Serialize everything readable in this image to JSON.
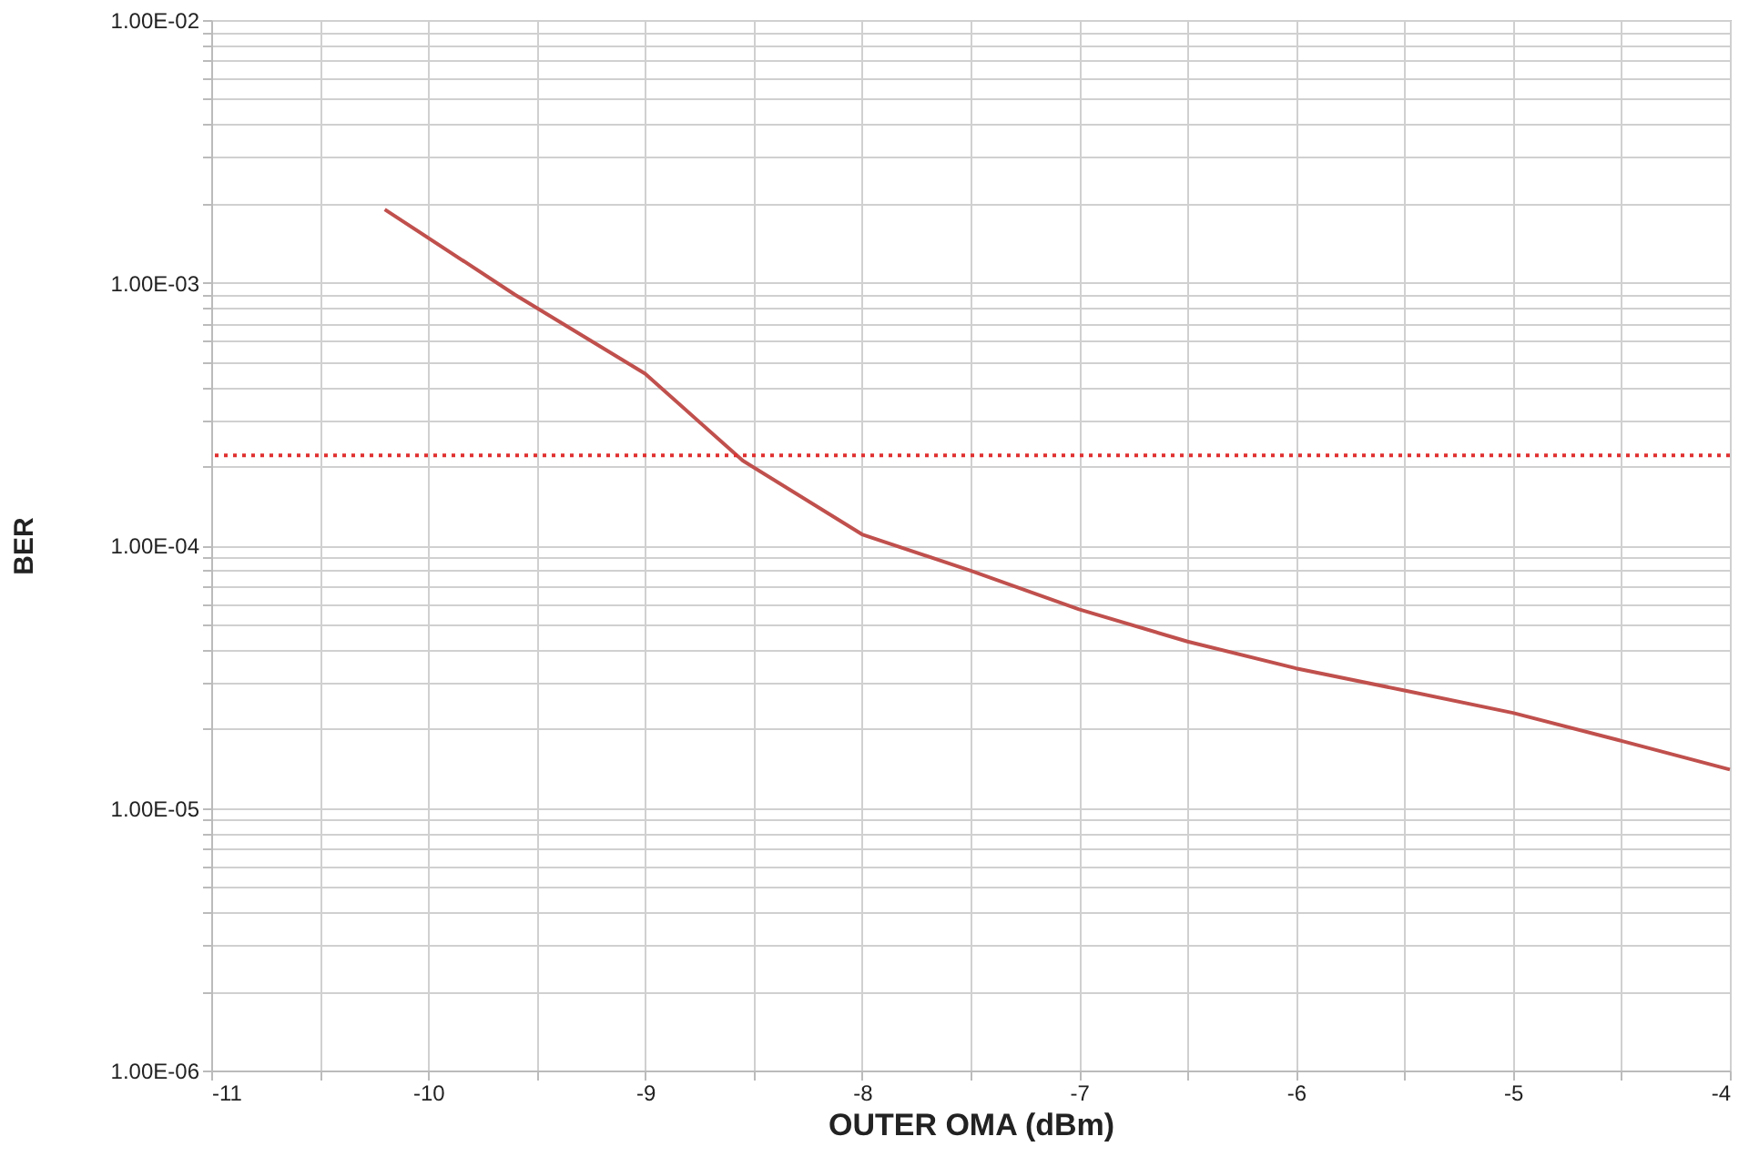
{
  "chart_data": {
    "type": "line",
    "xlabel": "OUTER OMA (dBm)",
    "ylabel": "BER",
    "x": [
      -10.2,
      -9.6,
      -9.0,
      -8.55,
      -8.0,
      -7.5,
      -7.0,
      -6.5,
      -6.0,
      -5.5,
      -5.0,
      -4.5,
      -4.0
    ],
    "series": [
      {
        "color": "#c0504d",
        "values": [
          0.0019,
          0.0009,
          0.00045,
          0.00021,
          0.00011,
          8e-05,
          5.7e-05,
          4.3e-05,
          3.4e-05,
          2.8e-05,
          2.3e-05,
          1.8e-05,
          1.4e-05
        ]
      }
    ],
    "log": "y",
    "grid": true,
    "line_style": "solid",
    "marker": "none",
    "xlim": [
      -11,
      -4
    ],
    "ylim": [
      1e-06,
      0.01
    ],
    "xticks": [
      -11,
      {
        "value": -10.5,
        "label": null
      },
      -10,
      {
        "value": -9.5,
        "label": null
      },
      -9,
      {
        "value": -8.5,
        "label": null
      },
      -8,
      {
        "value": -7.5,
        "label": null
      },
      -7,
      {
        "value": -6.5,
        "label": null
      },
      -6,
      {
        "value": -5.5,
        "label": null
      },
      -5,
      {
        "value": -4.5,
        "label": null
      },
      -4
    ],
    "yticks": [
      {
        "value": 1e-06,
        "label": "1.00E-06"
      },
      {
        "value": 2e-06,
        "label": null
      },
      {
        "value": 3e-06,
        "label": null
      },
      {
        "value": 4e-06,
        "label": null
      },
      {
        "value": 5e-06,
        "label": null
      },
      {
        "value": 6e-06,
        "label": null
      },
      {
        "value": 7e-06,
        "label": null
      },
      {
        "value": 8e-06,
        "label": null
      },
      {
        "value": 9e-06,
        "label": null
      },
      {
        "value": 1e-05,
        "label": "1.00E-05"
      },
      {
        "value": 2e-05,
        "label": null
      },
      {
        "value": 3e-05,
        "label": null
      },
      {
        "value": 4e-05,
        "label": null
      },
      {
        "value": 5e-05,
        "label": null
      },
      {
        "value": 6e-05,
        "label": null
      },
      {
        "value": 7e-05,
        "label": null
      },
      {
        "value": 8e-05,
        "label": null
      },
      {
        "value": 9e-05,
        "label": null
      },
      {
        "value": 0.0001,
        "label": "1.00E-04"
      },
      {
        "value": 0.0002,
        "label": null
      },
      {
        "value": 0.0003,
        "label": null
      },
      {
        "value": 0.0004,
        "label": null
      },
      {
        "value": 0.0005,
        "label": null
      },
      {
        "value": 0.0006,
        "label": null
      },
      {
        "value": 0.0007,
        "label": null
      },
      {
        "value": 0.0008,
        "label": null
      },
      {
        "value": 0.0009,
        "label": null
      },
      {
        "value": 0.001,
        "label": "1.00E-03"
      },
      {
        "value": 0.002,
        "label": null
      },
      {
        "value": 0.003,
        "label": null
      },
      {
        "value": 0.004,
        "label": null
      },
      {
        "value": 0.005,
        "label": null
      },
      {
        "value": 0.006,
        "label": null
      },
      {
        "value": 0.007,
        "label": null
      },
      {
        "value": 0.008,
        "label": null
      },
      {
        "value": 0.009,
        "label": null
      },
      {
        "value": 0.01,
        "label": "1.00E-02"
      }
    ],
    "ref_lines": [
      {
        "axis": "y",
        "value": 0.00022,
        "color": "#e03030",
        "line_style": "dotted"
      }
    ]
  }
}
